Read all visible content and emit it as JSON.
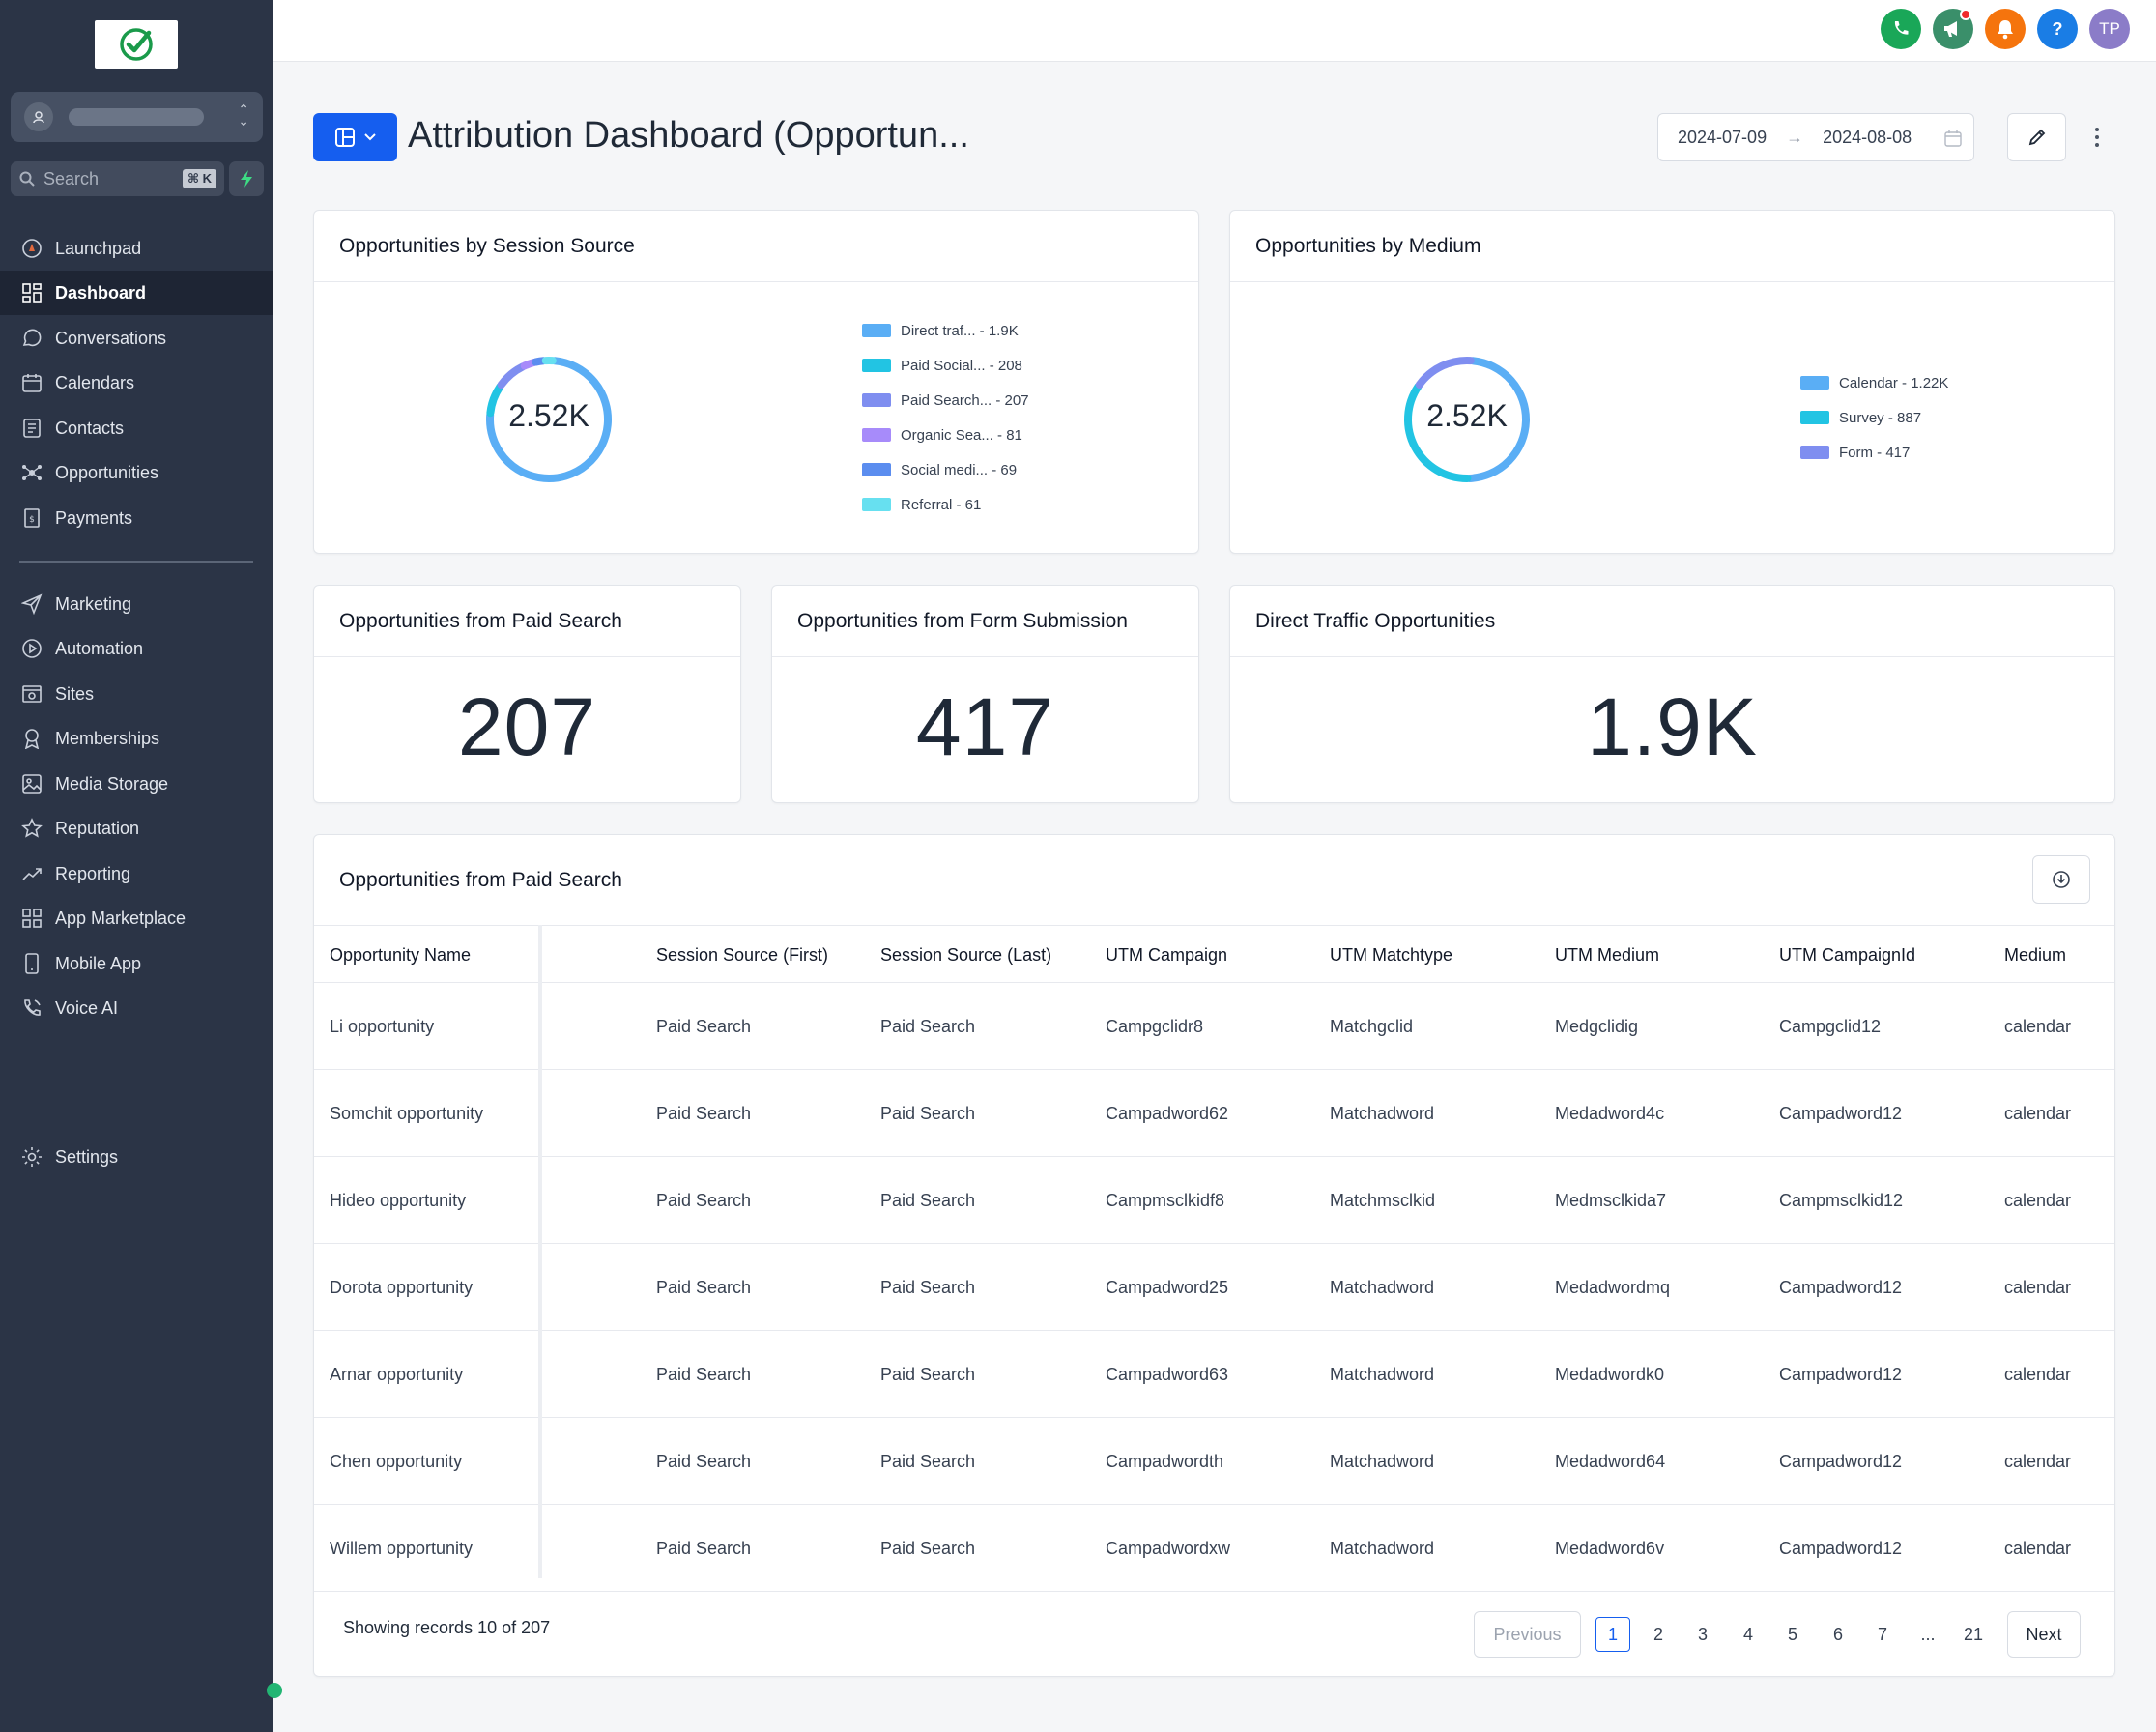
{
  "sidebar": {
    "search_placeholder": "Search",
    "search_shortcut": "⌘ K",
    "items": [
      {
        "label": "Launchpad",
        "icon": "launchpad-icon"
      },
      {
        "label": "Dashboard",
        "icon": "dashboard-grid-icon",
        "active": true
      },
      {
        "label": "Conversations",
        "icon": "chat-bubble-icon"
      },
      {
        "label": "Calendars",
        "icon": "calendar-icon"
      },
      {
        "label": "Contacts",
        "icon": "contacts-icon"
      },
      {
        "label": "Opportunities",
        "icon": "opportunities-icon"
      },
      {
        "label": "Payments",
        "icon": "payments-icon"
      }
    ],
    "items2": [
      {
        "label": "Marketing",
        "icon": "send-icon"
      },
      {
        "label": "Automation",
        "icon": "automation-icon"
      },
      {
        "label": "Sites",
        "icon": "sites-icon"
      },
      {
        "label": "Memberships",
        "icon": "memberships-icon"
      },
      {
        "label": "Media Storage",
        "icon": "image-icon"
      },
      {
        "label": "Reputation",
        "icon": "star-icon"
      },
      {
        "label": "Reporting",
        "icon": "trend-icon"
      },
      {
        "label": "App Marketplace",
        "icon": "apps-grid-icon"
      },
      {
        "label": "Mobile App",
        "icon": "mobile-icon"
      },
      {
        "label": "Voice AI",
        "icon": "phone-wave-icon"
      }
    ],
    "settings": {
      "label": "Settings",
      "icon": "gear-icon"
    }
  },
  "topbar": {
    "avatar_initials": "TP",
    "colors": {
      "phone": "#1aa758",
      "megaphone": "#3a8f6a",
      "bell": "#f5740d",
      "help": "#1a7de5",
      "avatar": "#8b7cc8"
    }
  },
  "header": {
    "title": "Attribution Dashboard (Opportun...",
    "date_start": "2024-07-09",
    "date_end": "2024-08-08"
  },
  "widgets": {
    "session_source": {
      "title": "Opportunities by Session Source",
      "total": "2.52K",
      "legend": [
        {
          "label": "Direct traf... - 1.9K",
          "color": "#5aaef5",
          "value": 1900
        },
        {
          "label": "Paid Social... - 208",
          "color": "#22c4e3",
          "value": 208
        },
        {
          "label": "Paid Search... - 207",
          "color": "#7f8ef0",
          "value": 207
        },
        {
          "label": "Organic Sea... - 81",
          "color": "#a78bfa",
          "value": 81
        },
        {
          "label": "Social medi... - 69",
          "color": "#5b8def",
          "value": 69
        },
        {
          "label": "Referral - 61",
          "color": "#67e0f0",
          "value": 61
        }
      ]
    },
    "medium": {
      "title": "Opportunities by Medium",
      "total": "2.52K",
      "legend": [
        {
          "label": "Calendar - 1.22K",
          "color": "#5aaef5",
          "value": 1220
        },
        {
          "label": "Survey - 887",
          "color": "#22c4e3",
          "value": 887
        },
        {
          "label": "Form - 417",
          "color": "#7f8ef0",
          "value": 417
        }
      ]
    },
    "paid_search": {
      "title": "Opportunities from Paid Search",
      "value": "207"
    },
    "form_submission": {
      "title": "Opportunities from Form Submission",
      "value": "417"
    },
    "direct_traffic": {
      "title": "Direct Traffic Opportunities",
      "value": "1.9K"
    }
  },
  "table": {
    "title": "Opportunities from Paid Search",
    "columns": [
      "Opportunity Name",
      "Session Source (First)",
      "Session Source (Last)",
      "UTM Campaign",
      "UTM Matchtype",
      "UTM Medium",
      "UTM CampaignId",
      "Medium"
    ],
    "rows": [
      [
        "Li opportunity",
        "Paid Search",
        "Paid Search",
        "Campgclidr8",
        "Matchgclid",
        "Medgclidig",
        "Campgclid12",
        "calendar"
      ],
      [
        "Somchit opportunity",
        "Paid Search",
        "Paid Search",
        "Campadword62",
        "Matchadword",
        "Medadword4c",
        "Campadword12",
        "calendar"
      ],
      [
        "Hideo opportunity",
        "Paid Search",
        "Paid Search",
        "Campmsclkidf8",
        "Matchmsclkid",
        "Medmsclkida7",
        "Campmsclkid12",
        "calendar"
      ],
      [
        "Dorota opportunity",
        "Paid Search",
        "Paid Search",
        "Campadword25",
        "Matchadword",
        "Medadwordmq",
        "Campadword12",
        "calendar"
      ],
      [
        "Arnar opportunity",
        "Paid Search",
        "Paid Search",
        "Campadword63",
        "Matchadword",
        "Medadwordk0",
        "Campadword12",
        "calendar"
      ],
      [
        "Chen opportunity",
        "Paid Search",
        "Paid Search",
        "Campadwordth",
        "Matchadword",
        "Medadword64",
        "Campadword12",
        "calendar"
      ],
      [
        "Willem opportunity",
        "Paid Search",
        "Paid Search",
        "Campadwordxw",
        "Matchadword",
        "Medadword6v",
        "Campadword12",
        "calendar"
      ]
    ],
    "records_text": "Showing records 10 of 207",
    "pagination": {
      "previous": "Previous",
      "next": "Next",
      "pages": [
        "1",
        "2",
        "3",
        "4",
        "5",
        "6",
        "7",
        "...",
        "21"
      ],
      "current": "1"
    }
  }
}
